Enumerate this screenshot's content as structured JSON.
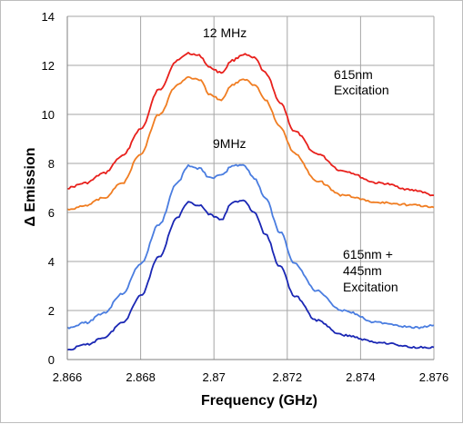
{
  "chart_data": {
    "type": "line",
    "xlabel": "Frequency (GHz)",
    "ylabel": "Δ Emission",
    "xlim": [
      2.866,
      2.876
    ],
    "ylim": [
      0,
      14
    ],
    "xticks": [
      "2.866",
      "2.868",
      "2.87",
      "2.872",
      "2.874",
      "2.876"
    ],
    "xtick_values": [
      2.866,
      2.868,
      2.87,
      2.872,
      2.874,
      2.876
    ],
    "yticks": [
      "0",
      "2",
      "4",
      "6",
      "8",
      "10",
      "12",
      "14"
    ],
    "ytick_values": [
      0,
      2,
      4,
      6,
      8,
      10,
      12,
      14
    ],
    "grid": true,
    "annotations": [
      {
        "key": "a12",
        "text": "12 MHz"
      },
      {
        "key": "a9",
        "text": "9MHz"
      },
      {
        "key": "top1",
        "text": "615nm"
      },
      {
        "key": "top2",
        "text": "Excitation"
      },
      {
        "key": "bot1",
        "text": "615nm +"
      },
      {
        "key": "bot2",
        "text": "445nm"
      },
      {
        "key": "bot3",
        "text": "Excitation"
      }
    ],
    "series": [
      {
        "color": "#e8201c",
        "x": [
          2.866,
          2.8665,
          2.867,
          2.8675,
          2.868,
          2.8685,
          2.869,
          2.8693,
          2.8696,
          2.8699,
          2.8702,
          2.8705,
          2.8708,
          2.8711,
          2.8714,
          2.8718,
          2.8722,
          2.8728,
          2.8735,
          2.8745,
          2.8755,
          2.876
        ],
        "y": [
          7.0,
          7.2,
          7.6,
          8.3,
          9.4,
          11.0,
          12.2,
          12.5,
          12.4,
          11.9,
          11.7,
          12.2,
          12.45,
          12.3,
          11.7,
          10.5,
          9.3,
          8.4,
          7.7,
          7.2,
          6.9,
          6.7
        ]
      },
      {
        "color": "#f07d22",
        "x": [
          2.866,
          2.8665,
          2.867,
          2.8675,
          2.868,
          2.8685,
          2.869,
          2.8693,
          2.8696,
          2.8699,
          2.8702,
          2.8705,
          2.8708,
          2.8711,
          2.8714,
          2.8718,
          2.8722,
          2.8728,
          2.8735,
          2.8745,
          2.8755,
          2.876
        ],
        "y": [
          6.1,
          6.3,
          6.6,
          7.2,
          8.4,
          10.0,
          11.2,
          11.5,
          11.4,
          10.8,
          10.6,
          11.2,
          11.45,
          11.2,
          10.6,
          9.5,
          8.4,
          7.3,
          6.7,
          6.4,
          6.3,
          6.2
        ]
      },
      {
        "color": "#4a7de0",
        "x": [
          2.866,
          2.8665,
          2.867,
          2.8675,
          2.868,
          2.8685,
          2.869,
          2.8693,
          2.8696,
          2.8699,
          2.8702,
          2.8705,
          2.8708,
          2.8711,
          2.8714,
          2.8718,
          2.8722,
          2.8728,
          2.8735,
          2.8745,
          2.8755,
          2.876
        ],
        "y": [
          1.3,
          1.5,
          1.9,
          2.7,
          3.9,
          5.5,
          7.2,
          7.9,
          7.8,
          7.4,
          7.5,
          7.9,
          7.95,
          7.4,
          6.6,
          5.2,
          3.9,
          2.8,
          2.0,
          1.5,
          1.3,
          1.4
        ]
      },
      {
        "color": "#1a27b4",
        "x": [
          2.866,
          2.8665,
          2.867,
          2.8675,
          2.868,
          2.8685,
          2.869,
          2.8693,
          2.8696,
          2.8699,
          2.8702,
          2.8705,
          2.8708,
          2.8711,
          2.8714,
          2.8718,
          2.8722,
          2.8728,
          2.8735,
          2.8745,
          2.8755,
          2.876
        ],
        "y": [
          0.4,
          0.6,
          0.9,
          1.5,
          2.6,
          4.2,
          5.8,
          6.4,
          6.3,
          5.9,
          5.7,
          6.4,
          6.5,
          6.0,
          5.1,
          3.8,
          2.6,
          1.6,
          1.0,
          0.7,
          0.5,
          0.5
        ]
      }
    ]
  }
}
